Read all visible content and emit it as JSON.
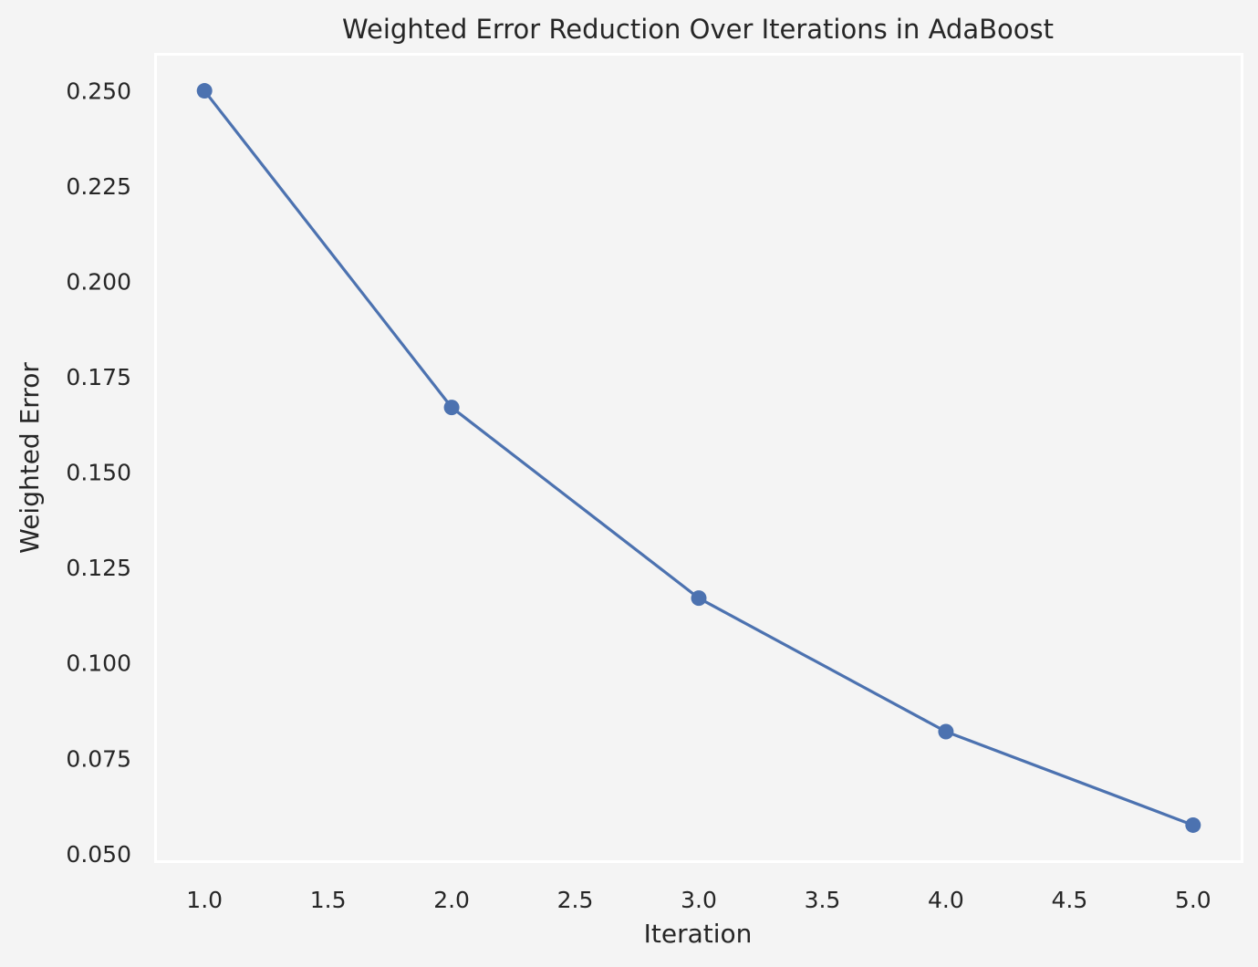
{
  "chart_data": {
    "type": "line",
    "title": "Weighted Error Reduction Over Iterations in AdaBoost",
    "xlabel": "Iteration",
    "ylabel": "Weighted Error",
    "x": [
      1,
      2,
      3,
      4,
      5
    ],
    "series": [
      {
        "values": [
          0.25,
          0.167,
          0.117,
          0.082,
          0.0575
        ]
      }
    ],
    "x_ticks": [
      "1.0",
      "1.5",
      "2.0",
      "2.5",
      "3.0",
      "3.5",
      "4.0",
      "4.5",
      "5.0"
    ],
    "y_ticks": [
      "0.050",
      "0.075",
      "0.100",
      "0.125",
      "0.150",
      "0.175",
      "0.200",
      "0.225",
      "0.250"
    ],
    "xlim": [
      0.8,
      5.2
    ],
    "ylim": [
      0.0478,
      0.2597
    ],
    "grid": false,
    "legend": "none",
    "colors": {
      "line": "#4c72b0",
      "background": "#f4f4f4",
      "axes_background": "#f4f4f4",
      "frame": "#ffffff",
      "text": "#262626"
    }
  }
}
